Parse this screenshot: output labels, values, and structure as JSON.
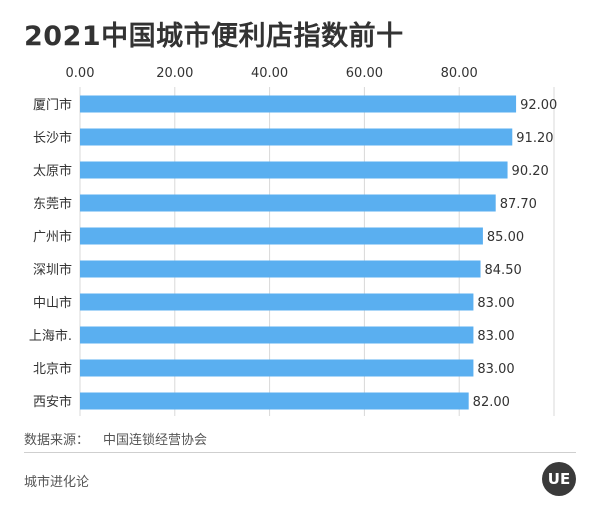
{
  "title": "2021中国城市便利店指数前十",
  "source": {
    "label": "数据来源：",
    "value": "中国连锁经营协会"
  },
  "footer": {
    "brand": "城市进化论",
    "logo_text": "UE"
  },
  "colors": {
    "bar": "#5aaff0",
    "grid": "#d9d9d9",
    "text": "#333333"
  },
  "chart_data": {
    "type": "bar",
    "orientation": "horizontal",
    "title": "2021中国城市便利店指数前十",
    "categories": [
      "厦门市",
      "长沙市",
      "太原市",
      "东莞市",
      "广州市",
      "深圳市",
      "中山市",
      "上海市.",
      "北京市",
      "西安市"
    ],
    "values": [
      92.0,
      91.2,
      90.2,
      87.7,
      85.0,
      84.5,
      83.0,
      83.0,
      83.0,
      82.0
    ],
    "value_labels": [
      "92.00",
      "91.20",
      "90.20",
      "87.70",
      "85.00",
      "84.50",
      "83.00",
      "83.00",
      "83.00",
      "82.00"
    ],
    "x_ticks": [
      "0.00",
      "20.00",
      "40.00",
      "60.00",
      "80.00"
    ],
    "xlim": [
      0,
      100
    ],
    "x_axis_position": "top",
    "grid": true,
    "legend": "none"
  }
}
